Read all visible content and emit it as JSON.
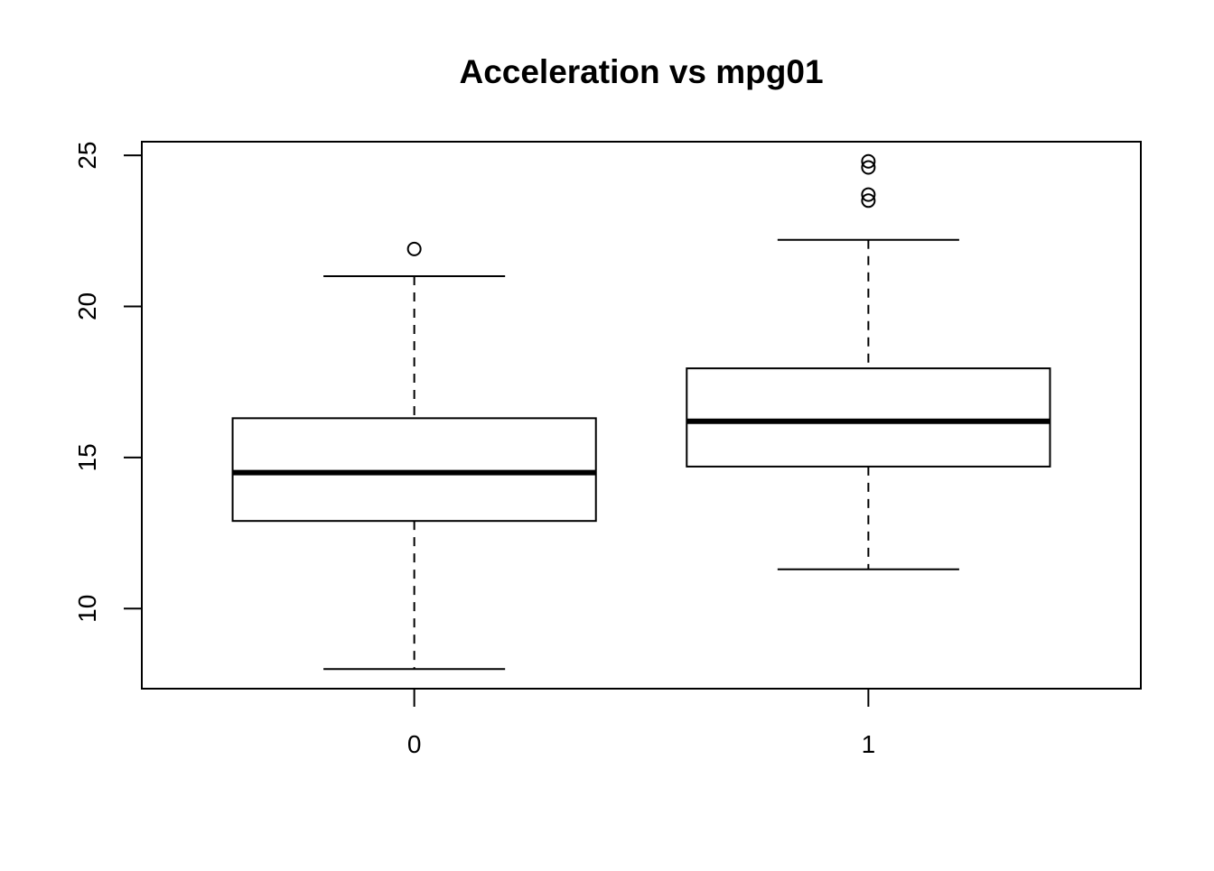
{
  "chart_data": {
    "type": "boxplot",
    "title": "Acceleration vs mpg01",
    "xlabel": "",
    "ylabel": "",
    "categories": [
      "0",
      "1"
    ],
    "boxes": [
      {
        "category": "0",
        "whisker_low": 8.0,
        "q1": 12.9,
        "median": 14.5,
        "q3": 16.3,
        "whisker_high": 21.0,
        "outliers": [
          21.9
        ]
      },
      {
        "category": "1",
        "whisker_low": 11.3,
        "q1": 14.7,
        "median": 16.2,
        "q3": 17.95,
        "whisker_high": 22.2,
        "outliers": [
          23.5,
          23.7,
          24.6,
          24.8
        ]
      }
    ],
    "ylim": [
      7.35,
      25.45
    ],
    "yticks": [
      10,
      15,
      20,
      25
    ],
    "grid": false,
    "legend": "none",
    "colors": {
      "stroke": "#000000",
      "fill": "#ffffff"
    }
  }
}
